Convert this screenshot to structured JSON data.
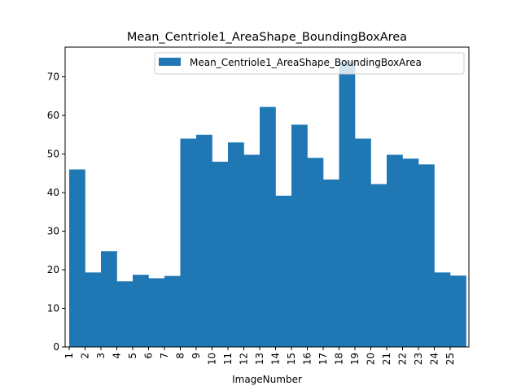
{
  "chart_data": {
    "type": "bar",
    "title": "Mean_Centriole1_AreaShape_BoundingBoxArea",
    "xlabel": "ImageNumber",
    "ylabel": "",
    "categories": [
      "1",
      "2",
      "3",
      "4",
      "5",
      "6",
      "7",
      "8",
      "9",
      "10",
      "11",
      "12",
      "13",
      "14",
      "15",
      "16",
      "17",
      "18",
      "19",
      "20",
      "21",
      "22",
      "23",
      "24",
      "25"
    ],
    "series": [
      {
        "name": "Mean_Centriole1_AreaShape_BoundingBoxArea",
        "values": [
          46.0,
          19.3,
          24.8,
          17.0,
          18.7,
          17.8,
          18.4,
          54.0,
          55.0,
          48.0,
          53.0,
          49.8,
          62.2,
          39.2,
          57.6,
          49.0,
          43.4,
          74.0,
          54.0,
          42.2,
          49.8,
          48.8,
          47.3,
          19.3,
          18.5
        ]
      }
    ],
    "ylim": [
      0,
      77.7
    ],
    "yticks": [
      0,
      10,
      20,
      30,
      40,
      50,
      60,
      70
    ],
    "grid": false,
    "legend_position": "upper right",
    "color": "#1f77b4"
  }
}
